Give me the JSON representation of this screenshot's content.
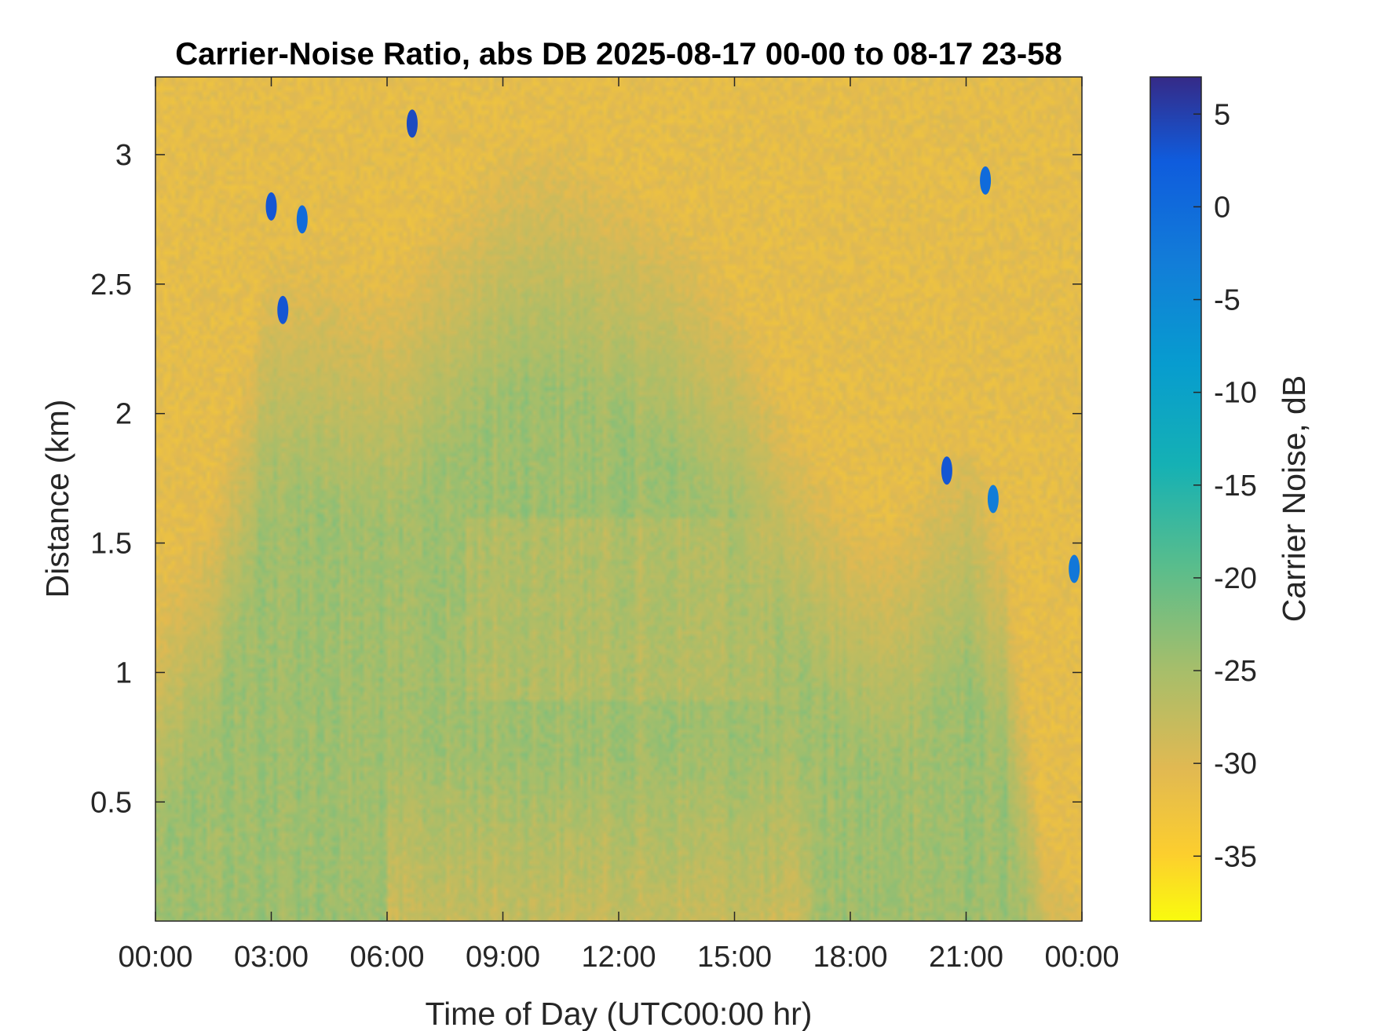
{
  "chart_data": {
    "type": "heatmap",
    "title": "Carrier-Noise Ratio, abs DB 2025-08-17 00-00 to 08-17 23-58",
    "xlabel": "Time of Day (UTC00:00 hr)",
    "ylabel": "Distance (km)",
    "colorbar_label": "Carrier Noise, dB",
    "x_range_hours": [
      0,
      24
    ],
    "y_range_km": [
      0.04,
      3.3
    ],
    "color_range_db": [
      -38.5,
      7
    ],
    "x_ticks": [
      {
        "hour": 0,
        "label": "00:00"
      },
      {
        "hour": 3,
        "label": "03:00"
      },
      {
        "hour": 6,
        "label": "06:00"
      },
      {
        "hour": 9,
        "label": "09:00"
      },
      {
        "hour": 12,
        "label": "12:00"
      },
      {
        "hour": 15,
        "label": "15:00"
      },
      {
        "hour": 18,
        "label": "18:00"
      },
      {
        "hour": 21,
        "label": "21:00"
      },
      {
        "hour": 24,
        "label": "00:00"
      }
    ],
    "y_ticks": [
      {
        "km": 0.5,
        "label": "0.5"
      },
      {
        "km": 1,
        "label": "1"
      },
      {
        "km": 1.5,
        "label": "1.5"
      },
      {
        "km": 2,
        "label": "2"
      },
      {
        "km": 2.5,
        "label": "2.5"
      },
      {
        "km": 3,
        "label": "3"
      }
    ],
    "colorbar_ticks": [
      {
        "db": 5,
        "label": "5"
      },
      {
        "db": 0,
        "label": "0"
      },
      {
        "db": -5,
        "label": "-5"
      },
      {
        "db": -10,
        "label": "-10"
      },
      {
        "db": -15,
        "label": "-15"
      },
      {
        "db": -20,
        "label": "-20"
      },
      {
        "db": -25,
        "label": "-25"
      },
      {
        "db": -30,
        "label": "-30"
      },
      {
        "db": -35,
        "label": "-35"
      }
    ],
    "colormap": "parula",
    "background_db": -31,
    "boundary_layer_top_km": [
      [
        0,
        1.3
      ],
      [
        1.5,
        1.7
      ],
      [
        3,
        2.65
      ],
      [
        4.5,
        2.6
      ],
      [
        6,
        2.55
      ],
      [
        7.5,
        2.8
      ],
      [
        9,
        3.05
      ],
      [
        10.5,
        3.1
      ],
      [
        12,
        2.95
      ],
      [
        13.5,
        2.8
      ],
      [
        15,
        2.5
      ],
      [
        16,
        2.2
      ],
      [
        17,
        1.9
      ],
      [
        18,
        1.7
      ],
      [
        19,
        1.6
      ],
      [
        20,
        1.8
      ],
      [
        21,
        2.0
      ],
      [
        22,
        1.6
      ],
      [
        23,
        0.4
      ],
      [
        24,
        0.2
      ]
    ],
    "features": [
      {
        "desc": "strong return patch",
        "hour_center": 3.0,
        "km_center": 2.8,
        "db": 3
      },
      {
        "desc": "strong return patch",
        "hour_center": 3.3,
        "km_center": 2.4,
        "db": 3
      },
      {
        "desc": "strong return patch",
        "hour_center": 3.8,
        "km_center": 2.75,
        "db": 0
      },
      {
        "desc": "strong return streak",
        "hour_center": 6.65,
        "km_center": 3.12,
        "db": 4
      },
      {
        "desc": "strong return streak",
        "hour_center": 20.5,
        "km_center": 1.78,
        "db": 3
      },
      {
        "desc": "strong return streak",
        "hour_center": 21.7,
        "km_center": 1.67,
        "db": -3
      },
      {
        "desc": "strong return streak",
        "hour_center": 21.5,
        "km_center": 2.9,
        "db": 0
      },
      {
        "desc": "strong return streak",
        "hour_center": 23.8,
        "km_center": 1.4,
        "db": -2
      }
    ]
  }
}
